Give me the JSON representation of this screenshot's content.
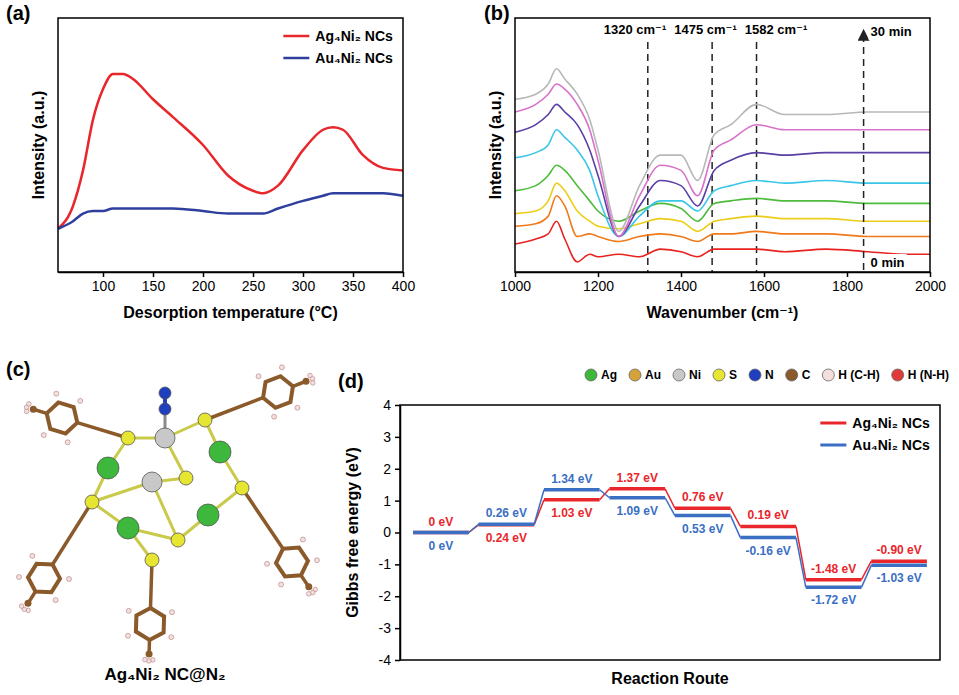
{
  "chart_data": [
    {
      "panel": "(a)",
      "type": "line",
      "x_label": "Desorption temperature (°C)",
      "y_label": "Intensity (a.u.)",
      "x": [
        55,
        70,
        80,
        90,
        100,
        110,
        120,
        130,
        150,
        170,
        200,
        225,
        250,
        260,
        275,
        300,
        320,
        330,
        340,
        360,
        380,
        400
      ],
      "series": [
        {
          "name": "Ag₄Ni₂ NCs",
          "color": "#e8262b",
          "values": [
            17,
            26,
            40,
            60,
            72,
            78,
            78,
            76,
            68,
            61,
            50,
            38,
            32,
            31,
            34,
            48,
            56,
            57,
            56,
            46,
            41,
            40
          ]
        },
        {
          "name": "Au₄Ni₂ NCs",
          "color": "#2f3f9e",
          "values": [
            17,
            20,
            23,
            24,
            24,
            25,
            25,
            25,
            25,
            25,
            24,
            23,
            23,
            23,
            25,
            28,
            30,
            31,
            31,
            31,
            31,
            30
          ]
        }
      ],
      "xlim": [
        55,
        400
      ],
      "ylim": [
        0,
        100
      ],
      "xticks": [
        100,
        150,
        200,
        250,
        300,
        350,
        400
      ],
      "tick_labels": "x",
      "legend": "top-right"
    },
    {
      "panel": "(b)",
      "type": "line",
      "x_label": "Wavenumber (cm⁻¹)",
      "y_label": "Intensity (a.u.)",
      "x": [
        1000,
        1050,
        1080,
        1100,
        1120,
        1150,
        1180,
        1200,
        1250,
        1300,
        1350,
        1400,
        1440,
        1480,
        1520,
        1582,
        1650,
        1750,
        1850,
        1950,
        2000
      ],
      "series": [
        {
          "color": "#e8231f",
          "values": [
            11,
            13,
            15,
            20,
            13,
            4,
            7,
            6,
            7,
            6,
            9,
            8,
            6,
            9,
            9,
            9,
            8,
            9,
            8,
            7,
            7
          ]
        },
        {
          "color": "#f07a1a",
          "values": [
            18,
            19,
            22,
            30,
            26,
            14,
            15,
            14,
            12,
            14,
            15,
            14,
            12,
            15,
            15,
            16,
            15,
            15,
            14,
            14,
            14
          ]
        },
        {
          "color": "#eccd18",
          "values": [
            23,
            24,
            28,
            35,
            32,
            24,
            20,
            18,
            17,
            19,
            21,
            20,
            16,
            20,
            21,
            22,
            21,
            21,
            20,
            20,
            20
          ]
        },
        {
          "color": "#4dbb3b",
          "values": [
            32,
            34,
            38,
            42,
            40,
            34,
            28,
            24,
            20,
            24,
            27,
            25,
            20,
            27,
            28,
            29,
            28,
            28,
            27,
            27,
            27
          ]
        },
        {
          "color": "#39c6e8",
          "values": [
            45,
            47,
            50,
            56,
            53,
            48,
            40,
            30,
            14,
            22,
            28,
            28,
            24,
            32,
            34,
            36,
            35,
            36,
            35,
            35,
            35
          ]
        },
        {
          "color": "#5a3fa5",
          "values": [
            55,
            58,
            62,
            66,
            63,
            58,
            48,
            38,
            14,
            26,
            36,
            34,
            26,
            40,
            44,
            47,
            46,
            47,
            47,
            47,
            47
          ]
        },
        {
          "color": "#d871c8",
          "values": [
            63,
            66,
            70,
            74,
            72,
            66,
            56,
            44,
            14,
            30,
            42,
            40,
            30,
            48,
            52,
            58,
            56,
            56,
            56,
            56,
            56
          ]
        },
        {
          "color": "#b8b8b8",
          "values": [
            68,
            70,
            74,
            80,
            76,
            70,
            60,
            48,
            16,
            34,
            46,
            46,
            36,
            54,
            58,
            66,
            62,
            62,
            63,
            63,
            63
          ]
        }
      ],
      "xlim": [
        1000,
        2000
      ],
      "ylim": [
        0,
        100
      ],
      "xticks": [
        1000,
        1200,
        1400,
        1600,
        1800,
        2000
      ],
      "tick_labels": "x",
      "annotations": [
        {
          "text": "1320 cm⁻¹",
          "x": 1320
        },
        {
          "text": "1475 cm⁻¹",
          "x": 1475
        },
        {
          "text": "1582 cm⁻¹",
          "x": 1582
        }
      ],
      "time_arrow": {
        "x": 1840,
        "start": "0 min",
        "end": "30 min"
      }
    },
    {
      "panel": "(d)",
      "type": "step",
      "x_label": "Reaction Route",
      "y_label": "Gibbs free energy (eV)",
      "categories": [
        null,
        null,
        null,
        null,
        null,
        null,
        null,
        null
      ],
      "series": [
        {
          "name": "Ag₄Ni₂ NCs",
          "color": "#e8262b",
          "values": [
            0,
            0.24,
            1.03,
            1.37,
            0.76,
            0.19,
            -1.48,
            -0.9
          ],
          "value_labels": [
            "0 eV",
            "0.24 eV",
            "1.03 eV",
            "1.37 eV",
            "0.76 eV",
            "0.19 eV",
            "-1.48 eV",
            "-0.90 eV"
          ]
        },
        {
          "name": "Au₄Ni₂ NCs",
          "color": "#3a6fc4",
          "values": [
            0,
            0.26,
            1.34,
            1.09,
            0.53,
            -0.16,
            -1.72,
            -1.03
          ],
          "value_labels": [
            "0 eV",
            "0.26 eV",
            "1.34 eV",
            "1.09 eV",
            "0.53 eV",
            "-0.16 eV",
            "-1.72 eV",
            "-1.03 eV"
          ]
        }
      ],
      "ylim": [
        -4,
        4
      ],
      "yticks": [
        -4,
        -3,
        -2,
        -1,
        0,
        1,
        2,
        3,
        4
      ],
      "tick_labels": "y",
      "data_labels": true,
      "legend": "top-right",
      "atom_legend": [
        {
          "label": "Ag",
          "color": "#3db83d"
        },
        {
          "label": "Au",
          "color": "#d4a23a"
        },
        {
          "label": "Ni",
          "color": "#c8c8c8"
        },
        {
          "label": "S",
          "color": "#e6e632"
        },
        {
          "label": "N",
          "color": "#1f3fbf"
        },
        {
          "label": "C",
          "color": "#8b5a2b"
        },
        {
          "label": "H (C-H)",
          "color": "#f4dede"
        },
        {
          "label": "H (N-H)",
          "color": "#e03a3a"
        }
      ]
    }
  ],
  "diagram": {
    "panel": "(c)",
    "caption": "Ag₄Ni₂ NC@N₂"
  }
}
